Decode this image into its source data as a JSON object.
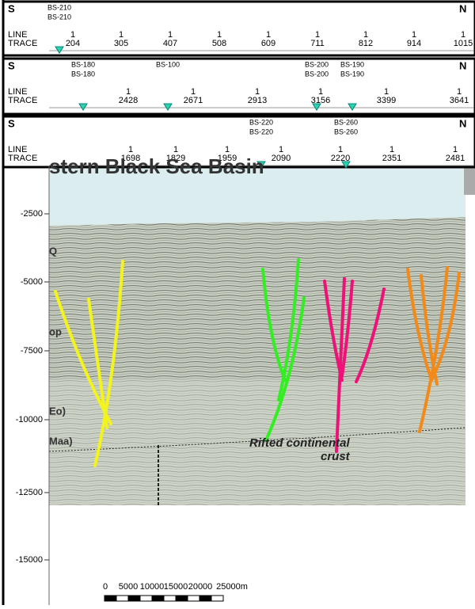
{
  "panels": [
    {
      "s": "S",
      "n": "N",
      "line_label": "LINE",
      "trace_label": "TRACE",
      "wells": [
        {
          "top": "BS-210",
          "bottom": "BS-210"
        }
      ],
      "line": [
        1,
        1,
        1,
        1,
        1,
        1,
        1,
        1,
        1
      ],
      "traces": [
        204,
        305,
        407,
        508,
        609,
        711,
        812,
        914,
        1015
      ]
    },
    {
      "s": "S",
      "n": "N",
      "line_label": "LINE",
      "trace_label": "TRACE",
      "wells": [
        {
          "top": "BS-180",
          "bottom": "BS-180"
        },
        {
          "top": "BS-100"
        },
        {
          "top": "BS-200",
          "bottom": "BS-200"
        },
        {
          "top": "BS-190",
          "bottom": "BS-190"
        }
      ],
      "line": [
        1,
        1,
        1,
        1,
        1,
        1
      ],
      "traces": [
        2428,
        2671,
        2913,
        3156,
        3399,
        3641
      ]
    },
    {
      "s": "S",
      "n": "N",
      "line_label": "LINE",
      "trace_label": "TRACE",
      "wells": [
        {
          "top": "BS-220",
          "bottom": "BS-220"
        },
        {
          "top": "BS-260",
          "bottom": "BS-260"
        }
      ],
      "line": [
        1,
        1,
        1,
        1,
        1,
        1,
        1
      ],
      "traces": [
        1698,
        1829,
        1959,
        2090,
        2220,
        2351,
        2481
      ]
    }
  ],
  "section": {
    "title": "stern Black Sea Basin",
    "depth_ticks": [
      -2500,
      -5000,
      -7500,
      -10000,
      -12500,
      -15000
    ],
    "horizons": [
      "Q",
      "op",
      "Eo)",
      "Maa)"
    ],
    "annotation": [
      "Rifted continental",
      "crust"
    ],
    "scale": [
      "0",
      "5000",
      "10000",
      "15000",
      "20000",
      "25000m"
    ]
  }
}
